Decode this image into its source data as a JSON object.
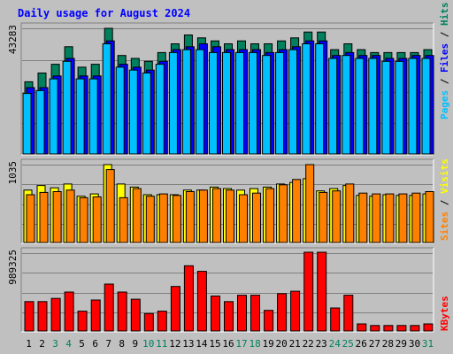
{
  "chart_data": [
    {
      "type": "bar",
      "title": "Daily usage for August 2024",
      "categories": [
        "1",
        "2",
        "3",
        "4",
        "5",
        "6",
        "7",
        "8",
        "9",
        "10",
        "11",
        "12",
        "13",
        "14",
        "15",
        "16",
        "17",
        "18",
        "19",
        "20",
        "21",
        "22",
        "23",
        "24",
        "25",
        "26",
        "27",
        "28",
        "29",
        "30",
        "31"
      ],
      "weekend_categories": [
        "3",
        "4",
        "10",
        "11",
        "17",
        "18",
        "24",
        "25",
        "31"
      ],
      "ylabel_max": "43283",
      "ylim": [
        0,
        43283
      ],
      "series": [
        {
          "name": "Hits",
          "color": "#00805c",
          "values": [
            25000,
            28000,
            31000,
            37000,
            30000,
            31000,
            43283,
            34000,
            33000,
            32000,
            35000,
            38000,
            41000,
            40000,
            39000,
            38000,
            39000,
            38000,
            38000,
            39000,
            40000,
            42000,
            42000,
            36000,
            38000,
            36000,
            35000,
            35000,
            35000,
            35000,
            36000
          ]
        },
        {
          "name": "Files",
          "color": "#0000ff",
          "values": [
            23000,
            23000,
            27000,
            33000,
            27000,
            27000,
            39000,
            31000,
            30000,
            29000,
            32000,
            36000,
            37000,
            38000,
            37000,
            36000,
            36000,
            36000,
            35000,
            36000,
            37000,
            39000,
            39000,
            34000,
            35000,
            34000,
            34000,
            33000,
            33000,
            34000,
            34000
          ]
        },
        {
          "name": "Pages",
          "color": "#00c0ff",
          "values": [
            21000,
            22000,
            26000,
            32000,
            26000,
            26000,
            38000,
            30000,
            29000,
            28000,
            31000,
            35000,
            36000,
            36000,
            35000,
            35000,
            35000,
            35000,
            34000,
            35000,
            36000,
            38000,
            38000,
            33000,
            34000,
            33000,
            33000,
            32000,
            32000,
            33000,
            33000
          ]
        }
      ],
      "legend_labels": {
        "pages": "Pages",
        "files": "Files",
        "hits": "Hits",
        "sep": " / "
      }
    },
    {
      "type": "bar",
      "ylabel_max": "1035",
      "ylim": [
        0,
        1035
      ],
      "series": [
        {
          "name": "Visits",
          "color": "#ffff00",
          "values": [
            700,
            760,
            730,
            780,
            620,
            650,
            1035,
            780,
            740,
            640,
            640,
            640,
            700,
            700,
            740,
            720,
            700,
            720,
            740,
            780,
            800,
            850,
            690,
            720,
            760,
            630,
            620,
            640,
            630,
            630,
            650
          ]
        },
        {
          "name": "Sites",
          "color": "#ff8000",
          "values": [
            640,
            670,
            680,
            700,
            600,
            610,
            970,
            600,
            720,
            620,
            650,
            630,
            680,
            700,
            720,
            700,
            640,
            660,
            720,
            770,
            840,
            1035,
            670,
            690,
            780,
            660,
            650,
            650,
            650,
            660,
            680
          ]
        }
      ],
      "legend_labels": {
        "sites": "Sites",
        "visits": "Visits",
        "sep": " / "
      }
    },
    {
      "type": "bar",
      "ylabel_max": "989325",
      "ylim": [
        0,
        989325
      ],
      "series": [
        {
          "name": "KBytes",
          "color": "#ff0000",
          "values": [
            380000,
            380000,
            420000,
            500000,
            260000,
            400000,
            600000,
            500000,
            410000,
            230000,
            260000,
            570000,
            830000,
            760000,
            450000,
            380000,
            460000,
            460000,
            270000,
            480000,
            510000,
            1000000,
            1000000,
            300000,
            460000,
            100000,
            80000,
            80000,
            80000,
            80000,
            100000
          ]
        }
      ],
      "legend_labels": {
        "kbytes": "KBytes"
      }
    }
  ],
  "colors": {
    "background": "#c0c0c0",
    "title": "#0000ff",
    "weekday_label": "#000000",
    "weekend_label": "#00805c",
    "axis_label": "#000000",
    "grid": "#808080",
    "bar_outline": "#000000"
  }
}
